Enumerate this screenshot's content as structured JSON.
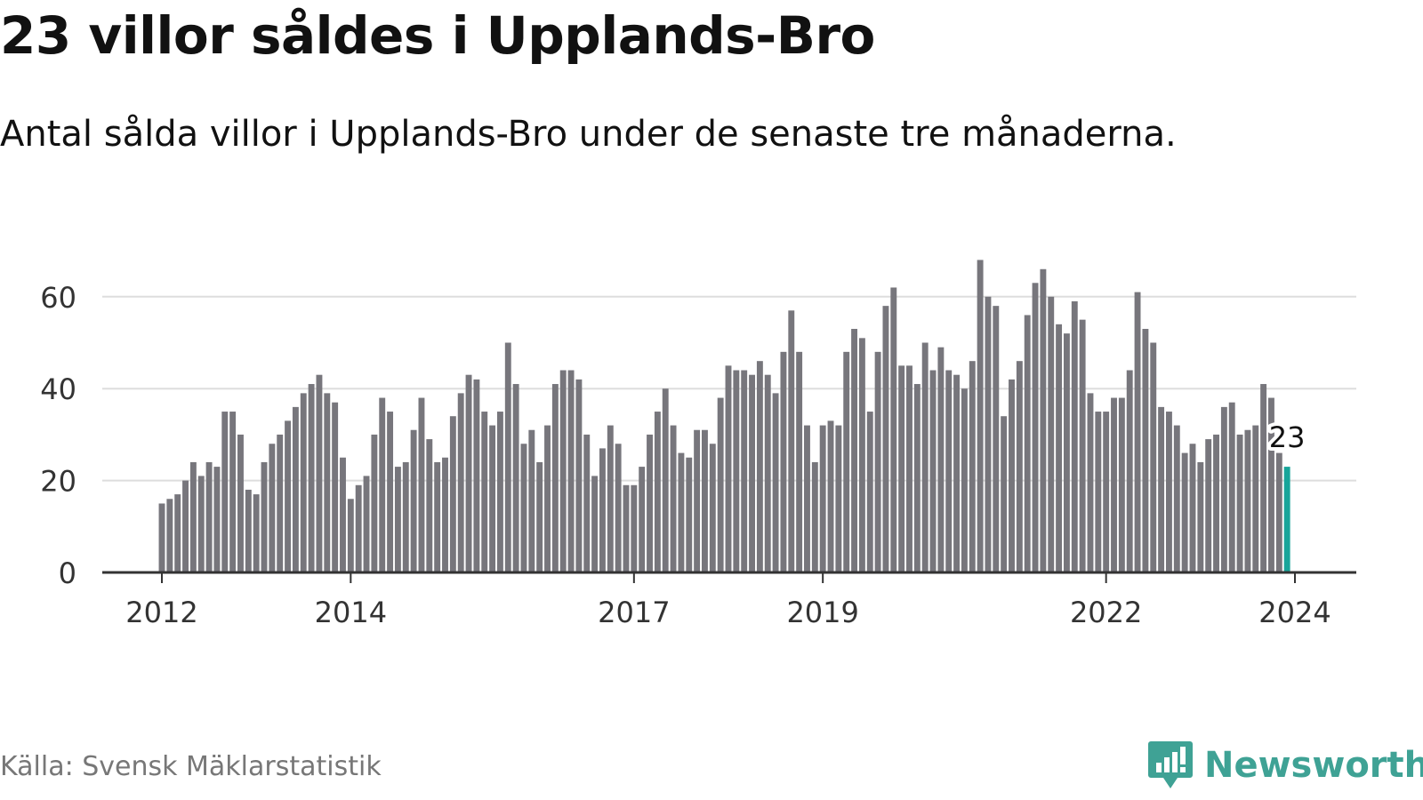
{
  "title": "23 villor såldes i Upplands-Bro",
  "subtitle": "Antal sålda villor i Upplands-Bro under de senaste tre månaderna.",
  "source": "Källa: Svensk Mäklarstatistik",
  "brand": {
    "name": "Newsworthy",
    "logo_icon": "newsworthy-logo-icon"
  },
  "colors": {
    "bar": "#77767c",
    "highlight": "#17a59a",
    "grid": "#dddddd",
    "axis": "#333333",
    "brand": "#3fa295"
  },
  "chart_data": {
    "type": "bar",
    "title": "23 villor såldes i Upplands-Bro",
    "xlabel": "",
    "ylabel": "",
    "ylim": [
      0,
      70
    ],
    "yticks": [
      0,
      20,
      40,
      60
    ],
    "grid": true,
    "x_start": "2012-01",
    "x_end": "2024-01",
    "xtick_labels": [
      "2012",
      "2014",
      "2017",
      "2019",
      "2022",
      "2024"
    ],
    "xtick_dates": [
      "2012-01",
      "2014-01",
      "2017-01",
      "2019-01",
      "2022-01",
      "2024-01"
    ],
    "highlight_label": "23",
    "series": [
      {
        "name": "Antal sålda villor",
        "start": "2012-01",
        "values": [
          15,
          16,
          17,
          20,
          24,
          21,
          24,
          23,
          35,
          35,
          30,
          18,
          17,
          24,
          28,
          30,
          33,
          36,
          39,
          41,
          43,
          39,
          37,
          25,
          16,
          19,
          21,
          30,
          38,
          35,
          23,
          24,
          31,
          38,
          29,
          24,
          25,
          34,
          39,
          43,
          42,
          35,
          32,
          35,
          50,
          41,
          28,
          31,
          24,
          32,
          41,
          44,
          44,
          42,
          30,
          21,
          27,
          32,
          28,
          19,
          19,
          23,
          30,
          35,
          40,
          32,
          26,
          25,
          31,
          31,
          28,
          38,
          45,
          44,
          44,
          43,
          46,
          43,
          39,
          48,
          57,
          48,
          32,
          24,
          32,
          33,
          32,
          48,
          53,
          51,
          35,
          48,
          58,
          62,
          45,
          45,
          41,
          50,
          44,
          49,
          44,
          43,
          40,
          46,
          68,
          60,
          58,
          34,
          42,
          46,
          56,
          63,
          66,
          60,
          54,
          52,
          59,
          55,
          39,
          35,
          35,
          38,
          38,
          44,
          61,
          53,
          50,
          36,
          35,
          32,
          26,
          28,
          24,
          29,
          30,
          36,
          37,
          30,
          31,
          32,
          41,
          38,
          26,
          23
        ]
      }
    ]
  }
}
